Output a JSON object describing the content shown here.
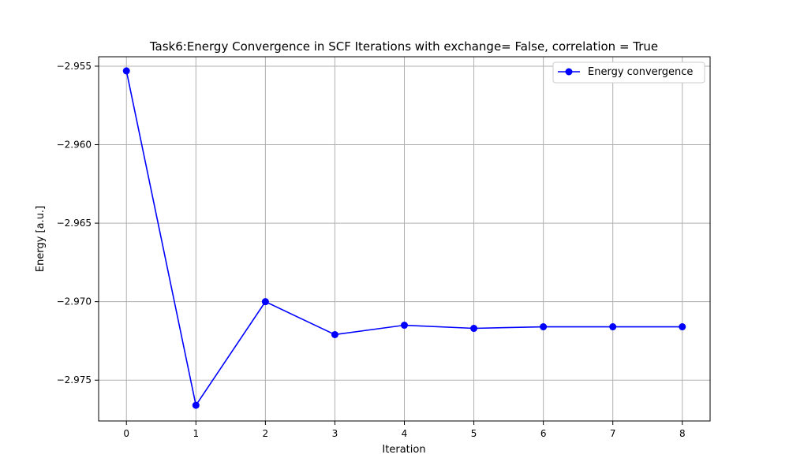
{
  "chart_data": {
    "type": "line",
    "title": "Task6:Energy Convergence in SCF Iterations with exchange= False, correlation = True",
    "xlabel": "Iteration",
    "ylabel": "Energy [a.u.]",
    "xlim": [
      -0.4,
      8.4
    ],
    "ylim": [
      -2.9776,
      -2.9544
    ],
    "xticks": [
      0,
      1,
      2,
      3,
      4,
      5,
      6,
      7,
      8
    ],
    "xtick_labels": [
      "0",
      "1",
      "2",
      "3",
      "4",
      "5",
      "6",
      "7",
      "8"
    ],
    "yticks": [
      -2.975,
      -2.97,
      -2.965,
      -2.96,
      -2.955
    ],
    "ytick_labels": [
      "−2.975",
      "−2.970",
      "−2.965",
      "−2.960",
      "−2.955"
    ],
    "grid": true,
    "legend_position": "top-right",
    "series": [
      {
        "name": "Energy convergence",
        "color": "#0000ff",
        "marker": "circle",
        "x": [
          0,
          1,
          2,
          3,
          4,
          5,
          6,
          7,
          8
        ],
        "y": [
          -2.9553,
          -2.9766,
          -2.97,
          -2.9721,
          -2.9715,
          -2.9717,
          -2.9716,
          -2.9716,
          -2.9716
        ]
      }
    ]
  }
}
